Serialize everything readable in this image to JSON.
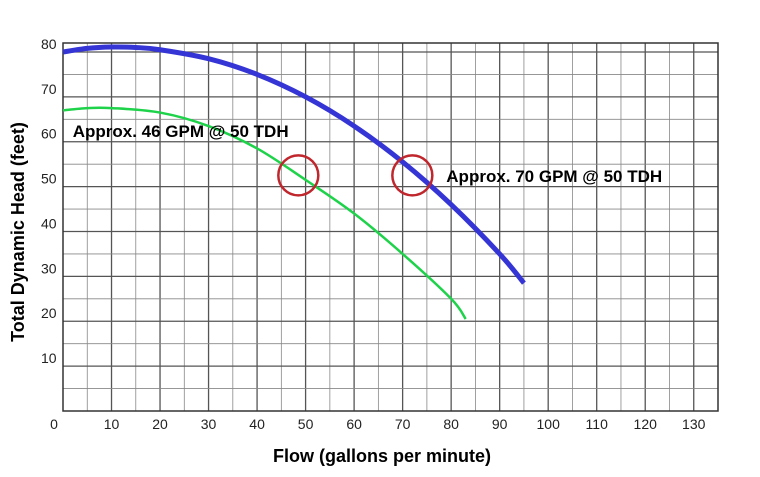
{
  "chart_data": {
    "type": "line",
    "xlabel": "Flow (gallons per minute)",
    "ylabel": "Total Dynamic Head (feet)",
    "xlim": [
      0,
      135
    ],
    "ylim": [
      0,
      82
    ],
    "xticks": [
      "0",
      "10",
      "20",
      "30",
      "40",
      "50",
      "60",
      "70",
      "80",
      "90",
      "100",
      "110",
      "120",
      "130"
    ],
    "yticks": [
      "10",
      "20",
      "30",
      "40",
      "50",
      "60",
      "70",
      "80"
    ],
    "grid": true,
    "series": [
      {
        "color": "#3535d6",
        "x": [
          0,
          5,
          10,
          15,
          20,
          30,
          40,
          50,
          60,
          70,
          80,
          90,
          95
        ],
        "y": [
          80,
          80.8,
          81.1,
          81.0,
          80.5,
          78.5,
          75,
          70,
          63.5,
          55.5,
          46,
          35,
          28.5
        ]
      },
      {
        "color": "#1ed24a",
        "x": [
          0,
          5,
          10,
          20,
          30,
          40,
          50,
          60,
          70,
          80,
          83
        ],
        "y": [
          67,
          67.5,
          67.5,
          66.5,
          63.5,
          58.5,
          51.5,
          44,
          35,
          25,
          20.5
        ]
      }
    ],
    "markers": [
      {
        "x": 48.5,
        "y": 52.5,
        "color": "#c0272d"
      },
      {
        "x": 72,
        "y": 52.5,
        "color": "#c0272d"
      }
    ],
    "annotations": [
      {
        "text": "Approx. 46 GPM @ 50 TDH",
        "x": 2,
        "y": 61
      },
      {
        "text": "Approx. 70 GPM @ 50 TDH",
        "x": 79,
        "y": 51
      }
    ]
  }
}
